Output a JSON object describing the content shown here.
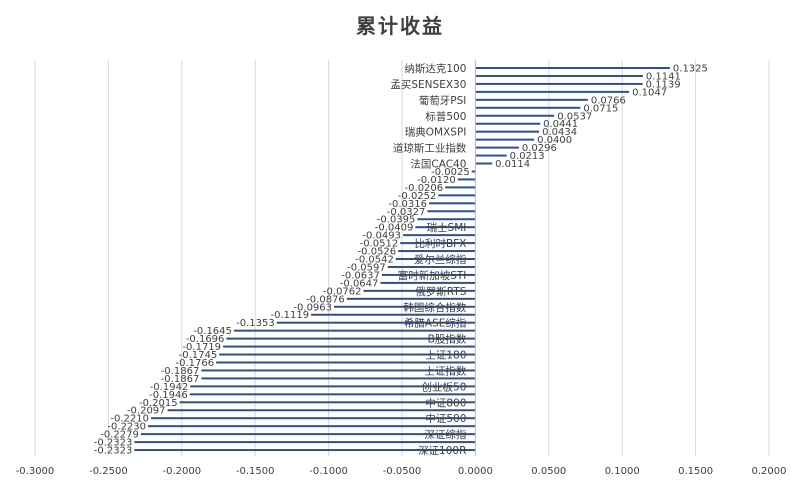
{
  "chart_data": {
    "type": "bar",
    "orientation": "horizontal",
    "title": "累计收益",
    "xlim": [
      -0.3,
      0.2
    ],
    "x_ticks": [
      "-0.3000",
      "-0.2500",
      "-0.2000",
      "-0.1500",
      "-0.1000",
      "-0.0500",
      "0.0000",
      "0.0500",
      "0.1000",
      "0.1500",
      "0.2000"
    ],
    "grid": true,
    "bar_color": "#2F4F8F",
    "rows": [
      {
        "category": "纳斯达克100",
        "value": 0.1325,
        "label": "0.1325"
      },
      {
        "category": "",
        "value": 0.1141,
        "label": "0.1141"
      },
      {
        "category": "孟买SENSEX30",
        "value": 0.1139,
        "label": "0.1139"
      },
      {
        "category": "",
        "value": 0.1047,
        "label": "0.1047"
      },
      {
        "category": "葡萄牙PSI",
        "value": 0.0766,
        "label": "0.0766"
      },
      {
        "category": "",
        "value": 0.0715,
        "label": "0.0715"
      },
      {
        "category": "标普500",
        "value": 0.0537,
        "label": "0.0537"
      },
      {
        "category": "",
        "value": 0.0441,
        "label": "0.0441"
      },
      {
        "category": "瑞典OMXSPI",
        "value": 0.0434,
        "label": "0.0434"
      },
      {
        "category": "",
        "value": 0.04,
        "label": "0.0400"
      },
      {
        "category": "道琼斯工业指数",
        "value": 0.0296,
        "label": "0.0296"
      },
      {
        "category": "",
        "value": 0.0213,
        "label": "0.0213"
      },
      {
        "category": "法国CAC40",
        "value": 0.0114,
        "label": "0.0114"
      },
      {
        "category": "",
        "value": -0.0025,
        "label": "-0.0025"
      },
      {
        "category": "",
        "value": -0.012,
        "label": "-0.0120"
      },
      {
        "category": "",
        "value": -0.0206,
        "label": "-0.0206"
      },
      {
        "category": "",
        "value": -0.0252,
        "label": "-0.0252"
      },
      {
        "category": "",
        "value": -0.0316,
        "label": "-0.0316"
      },
      {
        "category": "",
        "value": -0.0327,
        "label": "-0.0327"
      },
      {
        "category": "",
        "value": -0.0395,
        "label": "-0.0395"
      },
      {
        "category": "瑞士SMI",
        "value": -0.0409,
        "label": "-0.0409"
      },
      {
        "category": "",
        "value": -0.0493,
        "label": "-0.0493"
      },
      {
        "category": "比利时BFX",
        "value": -0.0512,
        "label": "-0.0512"
      },
      {
        "category": "",
        "value": -0.0526,
        "label": "-0.0526"
      },
      {
        "category": "爱尔兰综指",
        "value": -0.0542,
        "label": "-0.0542"
      },
      {
        "category": "",
        "value": -0.0597,
        "label": "-0.0597"
      },
      {
        "category": "富时新加坡STI",
        "value": -0.0637,
        "label": "-0.0637"
      },
      {
        "category": "",
        "value": -0.0647,
        "label": "-0.0647"
      },
      {
        "category": "俄罗斯RTS",
        "value": -0.0762,
        "label": "-0.0762"
      },
      {
        "category": "",
        "value": -0.0876,
        "label": "-0.0876"
      },
      {
        "category": "韩国综合指数",
        "value": -0.0963,
        "label": "-0.0963"
      },
      {
        "category": "",
        "value": -0.1119,
        "label": "-0.1119"
      },
      {
        "category": "希腊ASE综指",
        "value": -0.1353,
        "label": "-0.1353"
      },
      {
        "category": "",
        "value": -0.1645,
        "label": "-0.1645"
      },
      {
        "category": "B股指数",
        "value": -0.1696,
        "label": "-0.1696"
      },
      {
        "category": "",
        "value": -0.1719,
        "label": "-0.1719"
      },
      {
        "category": "上证180",
        "value": -0.1745,
        "label": "-0.1745"
      },
      {
        "category": "",
        "value": -0.1766,
        "label": "-0.1766"
      },
      {
        "category": "上证指数",
        "value": -0.1867,
        "label": "-0.1867"
      },
      {
        "category": "",
        "value": -0.1867,
        "label": "-0.1867"
      },
      {
        "category": "创业板50",
        "value": -0.1942,
        "label": "-0.1942"
      },
      {
        "category": "",
        "value": -0.1946,
        "label": "-0.1946"
      },
      {
        "category": "中证800",
        "value": -0.2015,
        "label": "-0.2015"
      },
      {
        "category": "",
        "value": -0.2097,
        "label": "-0.2097"
      },
      {
        "category": "中证500",
        "value": -0.221,
        "label": "-0.2210"
      },
      {
        "category": "",
        "value": -0.223,
        "label": "-0.2230"
      },
      {
        "category": "深证综指",
        "value": -0.2279,
        "label": "-0.2279"
      },
      {
        "category": "",
        "value": -0.2323,
        "label": "-0.2323"
      },
      {
        "category": "深证100R",
        "value": -0.2323,
        "label": "-0.2323"
      }
    ]
  }
}
